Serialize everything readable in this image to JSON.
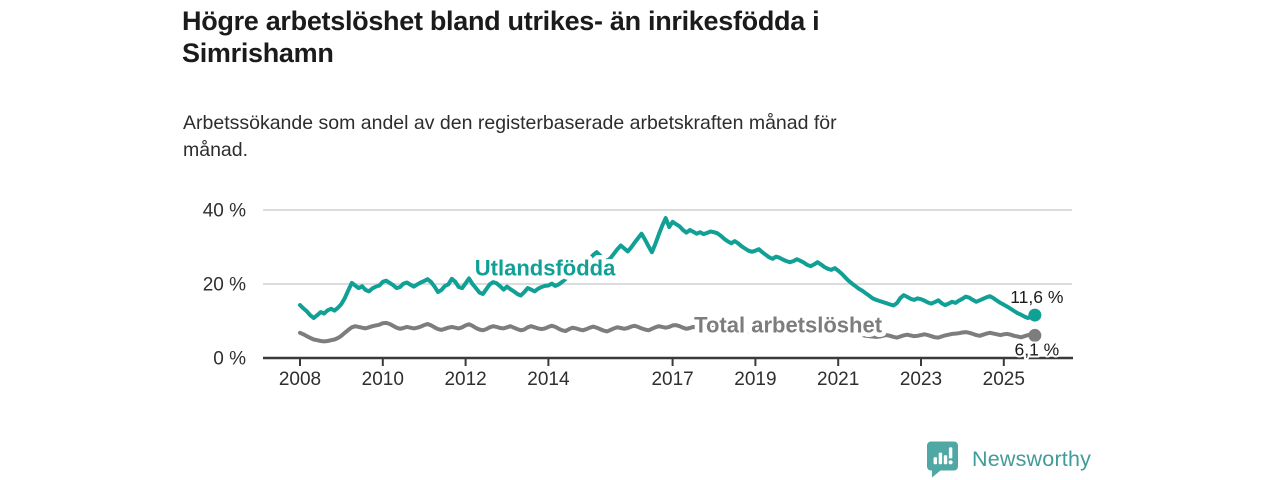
{
  "header": {
    "title": "Högre arbetslöshet bland utrikes- än inrikesfödda i Simrishamn",
    "title_lines": [
      "Högre arbetslöshet bland utrikes- än inrikesfödda i",
      "Simrishamn"
    ],
    "subtitle": "Arbetssökande som andel av den registerbaserade arbetskraften månad för månad.",
    "subtitle_lines": [
      "Arbetssökande som andel av den registerbaserade arbetskraften månad för",
      "månad."
    ]
  },
  "chart_data": {
    "type": "line",
    "title": "Högre arbetslöshet bland utrikes- än inrikesfödda i Simrishamn",
    "xlabel": "",
    "ylabel": "",
    "x_unit": "monthly",
    "x_start": {
      "year": 2008,
      "month": 1
    },
    "x_end": {
      "year": 2025,
      "month": 10
    },
    "ylim": [
      0,
      42
    ],
    "grid": "horizontal",
    "legend_position": "inline-labels",
    "axis_color": "#3a3a3a",
    "grid_color": "#dcdcdc",
    "tick_text_color": "#2f2f2f",
    "end_label_color": "#1c1c1c",
    "y_ticks": [
      {
        "value": 0,
        "label": "0 %"
      },
      {
        "value": 20,
        "label": "20 %"
      },
      {
        "value": 40,
        "label": "40 %"
      }
    ],
    "x_ticks": [
      {
        "year": 2008,
        "label": "2008"
      },
      {
        "year": 2010,
        "label": "2010"
      },
      {
        "year": 2012,
        "label": "2012"
      },
      {
        "year": 2014,
        "label": "2014"
      },
      {
        "year": 2017,
        "label": "2017"
      },
      {
        "year": 2019,
        "label": "2019"
      },
      {
        "year": 2021,
        "label": "2021"
      },
      {
        "year": 2023,
        "label": "2023"
      },
      {
        "year": 2025,
        "label": "2025"
      }
    ],
    "series": [
      {
        "name": "Utlandsfödda",
        "color": "#10a095",
        "line_width": 4,
        "inline_label": {
          "year": 2013.92,
          "value": 24.3
        },
        "end_dot": true,
        "end_label": {
          "text": "11,6 %",
          "side": "above"
        },
        "last_value": 11.6,
        "values": [
          14.3,
          13.4,
          12.6,
          11.5,
          10.8,
          11.6,
          12.4,
          12.0,
          12.9,
          13.3,
          12.8,
          13.6,
          14.6,
          16.2,
          18.3,
          20.3,
          19.6,
          18.9,
          19.4,
          18.4,
          18.0,
          18.8,
          19.3,
          19.6,
          20.6,
          20.9,
          20.3,
          19.7,
          18.9,
          19.2,
          20.1,
          20.4,
          19.8,
          19.3,
          19.9,
          20.4,
          20.8,
          21.3,
          20.5,
          19.3,
          17.8,
          18.4,
          19.5,
          19.9,
          21.4,
          20.6,
          19.2,
          18.9,
          20.2,
          21.5,
          20.0,
          18.9,
          17.7,
          17.3,
          18.6,
          19.9,
          20.5,
          20.2,
          19.4,
          18.5,
          19.3,
          18.6,
          18.0,
          17.3,
          16.9,
          17.8,
          18.9,
          18.5,
          18.0,
          18.7,
          19.2,
          19.5,
          19.6,
          20.1,
          19.5,
          19.9,
          20.6,
          21.4,
          22.5,
          23.4,
          24.6,
          25.8,
          26.6,
          26.0,
          26.9,
          27.8,
          28.6,
          27.7,
          26.8,
          26.2,
          27.0,
          28.2,
          29.4,
          30.4,
          29.6,
          28.8,
          29.9,
          31.2,
          32.4,
          33.6,
          32.0,
          30.2,
          28.6,
          30.8,
          33.4,
          35.8,
          37.8,
          35.4,
          36.8,
          36.2,
          35.6,
          34.6,
          33.9,
          34.6,
          34.1,
          33.6,
          34.0,
          33.5,
          33.8,
          34.2,
          34.0,
          33.7,
          33.0,
          32.2,
          31.5,
          31.0,
          31.6,
          31.0,
          30.2,
          29.6,
          29.0,
          28.7,
          29.0,
          29.4,
          28.6,
          27.9,
          27.2,
          26.8,
          27.4,
          27.1,
          26.6,
          26.2,
          25.9,
          26.2,
          26.7,
          26.3,
          25.8,
          25.2,
          24.8,
          25.3,
          25.9,
          25.3,
          24.6,
          24.1,
          23.8,
          24.3,
          23.6,
          22.8,
          21.8,
          20.9,
          20.1,
          19.4,
          18.7,
          18.2,
          17.5,
          16.8,
          16.1,
          15.7,
          15.4,
          15.1,
          14.8,
          14.5,
          14.2,
          14.8,
          16.2,
          17.0,
          16.5,
          16.0,
          15.7,
          16.1,
          15.9,
          15.5,
          15.0,
          14.7,
          15.1,
          15.6,
          14.8,
          14.3,
          14.7,
          15.2,
          14.9,
          15.5,
          16.0,
          16.6,
          16.3,
          15.7,
          15.2,
          15.6,
          16.0,
          16.4,
          16.7,
          16.2,
          15.5,
          14.9,
          14.4,
          13.9,
          13.3,
          12.7,
          12.1,
          11.7,
          11.2,
          10.8,
          11.1,
          11.6
        ]
      },
      {
        "name": "Total arbetslöshet",
        "color": "#7d7d7d",
        "line_width": 4,
        "inline_label": {
          "year": 2019.79,
          "value": 8.9
        },
        "end_dot": true,
        "end_label": {
          "text": "6,1 %",
          "side": "below"
        },
        "last_value": 6.1,
        "values": [
          6.8,
          6.4,
          5.9,
          5.4,
          5.0,
          4.8,
          4.6,
          4.5,
          4.6,
          4.8,
          5.0,
          5.4,
          6.0,
          6.8,
          7.6,
          8.3,
          8.6,
          8.4,
          8.2,
          8.0,
          8.3,
          8.6,
          8.8,
          9.0,
          9.4,
          9.5,
          9.2,
          8.7,
          8.2,
          7.9,
          8.1,
          8.4,
          8.2,
          8.0,
          8.2,
          8.5,
          8.9,
          9.2,
          8.8,
          8.3,
          7.8,
          7.6,
          7.9,
          8.2,
          8.4,
          8.2,
          8.0,
          8.3,
          8.8,
          9.1,
          8.7,
          8.1,
          7.7,
          7.5,
          7.8,
          8.3,
          8.6,
          8.4,
          8.1,
          8.0,
          8.3,
          8.6,
          8.2,
          7.8,
          7.5,
          7.7,
          8.3,
          8.6,
          8.3,
          8.0,
          7.8,
          8.0,
          8.4,
          8.7,
          8.4,
          7.9,
          7.5,
          7.3,
          7.8,
          8.2,
          8.0,
          7.7,
          7.5,
          7.8,
          8.2,
          8.5,
          8.2,
          7.8,
          7.4,
          7.2,
          7.6,
          8.0,
          8.3,
          8.1,
          7.9,
          8.1,
          8.5,
          8.7,
          8.4,
          8.0,
          7.7,
          7.5,
          7.9,
          8.3,
          8.6,
          8.4,
          8.2,
          8.4,
          8.8,
          8.9,
          8.6,
          8.2,
          7.9,
          8.1,
          8.4,
          8.2,
          8.0,
          7.9,
          7.8,
          8.0,
          8.2,
          8.3,
          8.0,
          7.7,
          7.4,
          7.2,
          7.5,
          7.7,
          7.5,
          7.3,
          7.2,
          7.4,
          7.6,
          7.7,
          7.5,
          7.2,
          7.0,
          6.9,
          7.2,
          7.4,
          7.3,
          7.2,
          7.1,
          7.3,
          7.5,
          7.6,
          7.8,
          8.1,
          8.3,
          8.2,
          8.4,
          8.2,
          8.0,
          7.8,
          7.6,
          7.5,
          7.4,
          7.3,
          7.1,
          6.9,
          6.7,
          6.5,
          6.4,
          6.2,
          6.0,
          5.9,
          5.8,
          5.7,
          5.8,
          6.0,
          6.2,
          6.0,
          5.7,
          5.5,
          5.8,
          6.1,
          6.3,
          6.1,
          5.9,
          6.0,
          6.2,
          6.4,
          6.2,
          5.9,
          5.6,
          5.5,
          5.8,
          6.1,
          6.3,
          6.5,
          6.6,
          6.7,
          6.9,
          7.0,
          6.8,
          6.5,
          6.2,
          6.0,
          6.3,
          6.6,
          6.8,
          6.6,
          6.4,
          6.2,
          6.4,
          6.5,
          6.3,
          6.0,
          5.8,
          5.6,
          5.9,
          6.2,
          6.3,
          6.1
        ]
      }
    ]
  },
  "footer": {
    "brand": "Newsworthy",
    "wordmark_color": "#3f9c98",
    "icon_color": "#4fa8a3"
  }
}
